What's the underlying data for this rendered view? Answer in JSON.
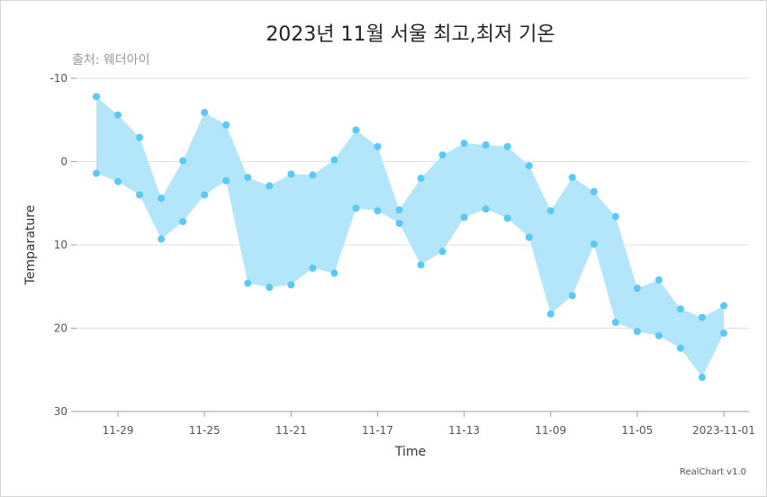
{
  "chart_data": {
    "type": "area",
    "variant": "range-area",
    "title": "2023년 11월 서울 최고,최저 기온",
    "subtitle": "출처: 웨더아이",
    "xlabel": "Time",
    "ylabel": "Temparature",
    "credit": "RealChart v1.0",
    "y_reversed": true,
    "ylim": [
      -10,
      30
    ],
    "y_ticks": [
      -10,
      0,
      10,
      20,
      30
    ],
    "x_reversed": true,
    "x": [
      "2023-11-01",
      "2023-11-02",
      "2023-11-03",
      "2023-11-04",
      "2023-11-05",
      "2023-11-06",
      "2023-11-07",
      "2023-11-08",
      "2023-11-09",
      "2023-11-10",
      "2023-11-11",
      "2023-11-12",
      "2023-11-13",
      "2023-11-14",
      "2023-11-15",
      "2023-11-16",
      "2023-11-17",
      "2023-11-18",
      "2023-11-19",
      "2023-11-20",
      "2023-11-21",
      "2023-11-22",
      "2023-11-23",
      "2023-11-24",
      "2023-11-25",
      "2023-11-26",
      "2023-11-27",
      "2023-11-28",
      "2023-11-29",
      "2023-11-30"
    ],
    "x_tick_labels": [
      {
        "date": "2023-11-01",
        "label": "2023-11-01"
      },
      {
        "date": "2023-11-05",
        "label": "11-05"
      },
      {
        "date": "2023-11-09",
        "label": "11-09"
      },
      {
        "date": "2023-11-13",
        "label": "11-13"
      },
      {
        "date": "2023-11-17",
        "label": "11-17"
      },
      {
        "date": "2023-11-21",
        "label": "11-21"
      },
      {
        "date": "2023-11-25",
        "label": "11-25"
      },
      {
        "date": "2023-11-29",
        "label": "11-29"
      }
    ],
    "series": [
      {
        "values": [
          17.3,
          18.7,
          17.7,
          14.2,
          15.2,
          6.6,
          3.6,
          1.9,
          5.9,
          0.5,
          -1.8,
          -2.0,
          -2.2,
          -0.8,
          2.0,
          5.8,
          -1.8,
          -3.8,
          -0.2,
          1.6,
          1.5,
          2.9,
          1.9,
          -4.4,
          -5.9,
          -0.1,
          4.4,
          -2.9,
          -5.6,
          -7.8
        ]
      },
      {
        "values": [
          20.6,
          25.9,
          22.4,
          20.9,
          20.4,
          19.3,
          9.9,
          16.1,
          18.3,
          9.1,
          6.8,
          5.7,
          6.7,
          10.8,
          12.4,
          7.4,
          5.9,
          5.6,
          13.4,
          12.8,
          14.8,
          15.1,
          14.6,
          2.3,
          4.0,
          7.2,
          9.3,
          4.0,
          2.4,
          1.4
        ]
      }
    ],
    "colors": {
      "fill": "#b3e6fb",
      "point": "#5bc8f5",
      "grid": "#e0e0e0",
      "axis": "#9e9e9e"
    },
    "grid": true,
    "legend": "none"
  }
}
